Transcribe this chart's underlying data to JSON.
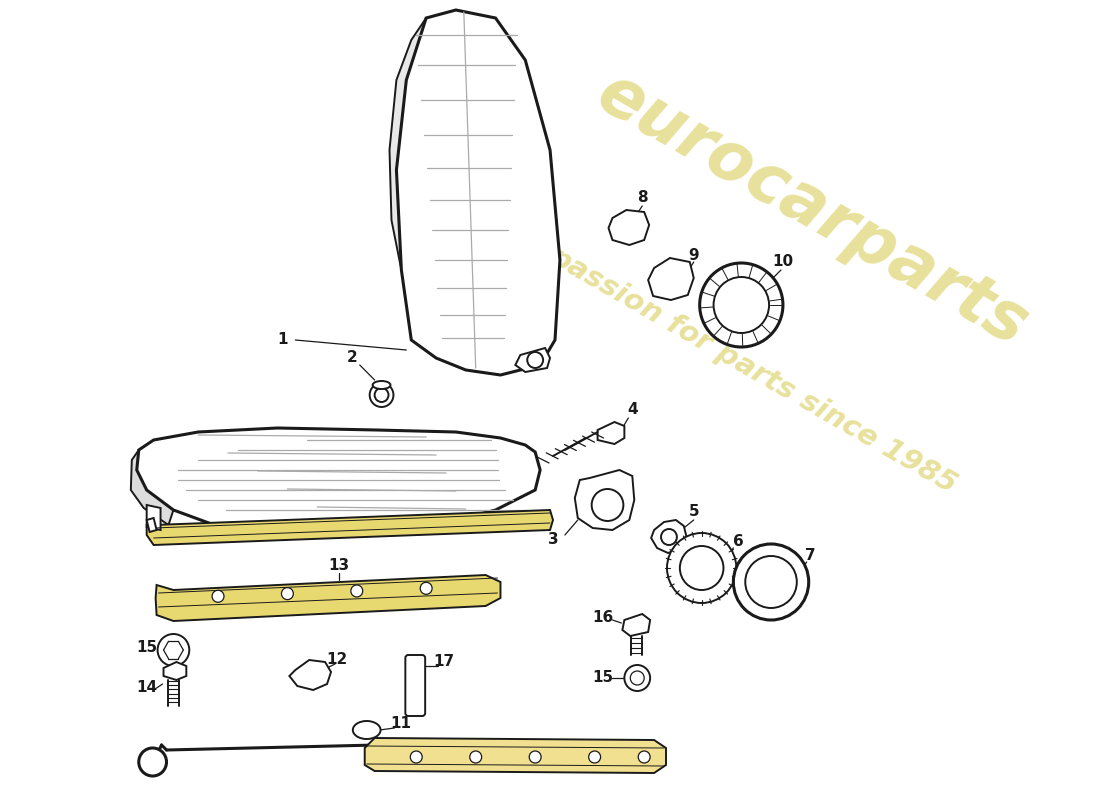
{
  "background_color": "#ffffff",
  "line_color": "#1a1a1a",
  "watermark_color": "#d4c84a",
  "seat_rail_color": "#e8d870",
  "figsize": [
    11.0,
    8.0
  ],
  "dpi": 100
}
